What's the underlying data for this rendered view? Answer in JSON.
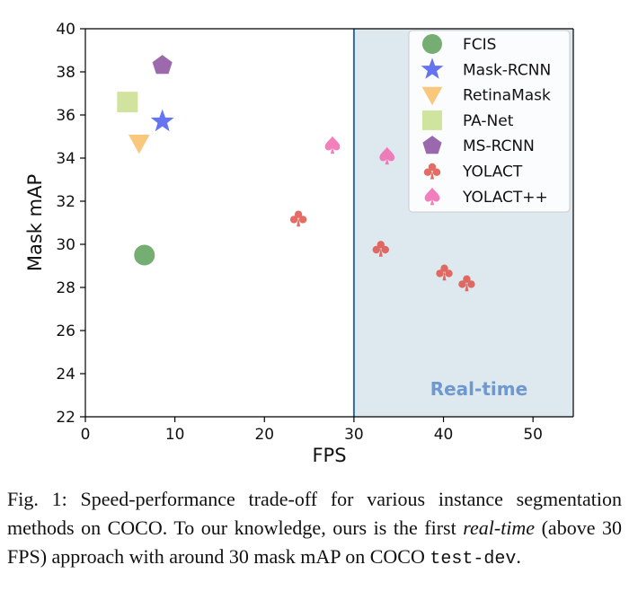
{
  "chart_data": {
    "type": "scatter",
    "xlabel": "FPS",
    "ylabel": "Mask mAP",
    "xlim": [
      0,
      54.5
    ],
    "ylim": [
      22,
      40
    ],
    "xticks": [
      0,
      10,
      20,
      30,
      40,
      50
    ],
    "yticks": [
      22,
      24,
      26,
      28,
      30,
      32,
      34,
      36,
      38,
      40
    ],
    "grid": false,
    "legend_position": "top-right",
    "realtime_threshold": 30,
    "realtime_label": "Real-time",
    "realtime_fill": "#dde9ee",
    "realtime_line_color": "#2f6f9f",
    "realtime_text_color": "#6e98cf",
    "series": [
      {
        "name": "FCIS",
        "marker": "circle",
        "color": "#5ea05a",
        "points": [
          {
            "x": 6.6,
            "y": 29.5
          }
        ]
      },
      {
        "name": "Mask-RCNN",
        "marker": "star",
        "color": "#4a5cf0",
        "points": [
          {
            "x": 8.6,
            "y": 35.7
          }
        ]
      },
      {
        "name": "RetinaMask",
        "marker": "triangle-down",
        "color": "#f9bf66",
        "points": [
          {
            "x": 6.0,
            "y": 34.7
          }
        ]
      },
      {
        "name": "PA-Net",
        "marker": "square",
        "color": "#c9df8f",
        "points": [
          {
            "x": 4.7,
            "y": 36.6
          }
        ]
      },
      {
        "name": "MS-RCNN",
        "marker": "pentagon",
        "color": "#8a4f9e",
        "points": [
          {
            "x": 8.6,
            "y": 38.3
          }
        ]
      },
      {
        "name": "YOLACT",
        "marker": "club",
        "color": "#e0534a",
        "points": [
          {
            "x": 23.8,
            "y": 31.2
          },
          {
            "x": 33.0,
            "y": 29.8
          },
          {
            "x": 40.1,
            "y": 28.7
          },
          {
            "x": 42.6,
            "y": 28.2
          }
        ]
      },
      {
        "name": "YOLACT++",
        "marker": "spade",
        "color": "#f06ab0",
        "points": [
          {
            "x": 27.6,
            "y": 34.6
          },
          {
            "x": 33.7,
            "y": 34.1
          }
        ]
      }
    ]
  },
  "caption": {
    "prefix": "Fig. 1: Speed-performance trade-off for various instance segmentation methods on COCO. To our knowledge, ours is the first ",
    "italic": "real-time",
    "middle": " (above 30 FPS) approach with around 30 mask mAP on COCO ",
    "mono": "test-dev",
    "suffix": "."
  }
}
